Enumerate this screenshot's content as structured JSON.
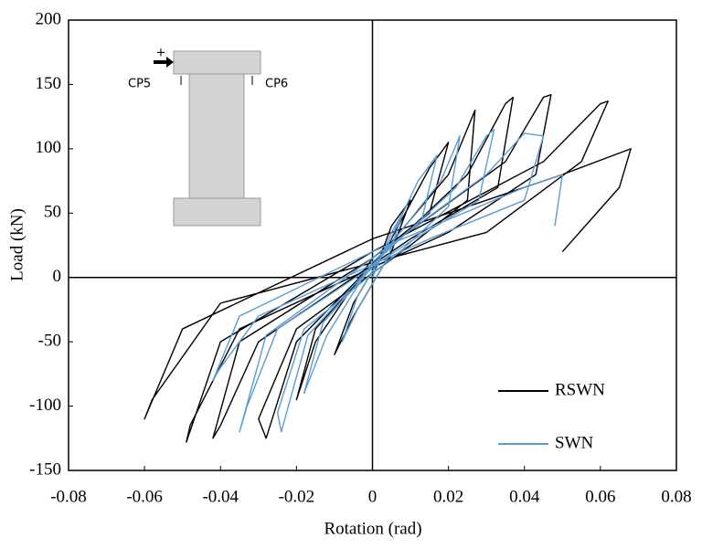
{
  "chart_data": {
    "type": "line",
    "x_label": "Rotation (rad)",
    "y_label": "Load (kN)",
    "xlim": [
      -0.08,
      0.08
    ],
    "xticks": [
      -0.08,
      -0.06,
      -0.04,
      -0.02,
      0,
      0.02,
      0.04,
      0.06,
      0.08
    ],
    "ylim": [
      -150,
      200
    ],
    "yticks": [
      -150,
      -100,
      -50,
      0,
      50,
      100,
      150,
      200
    ],
    "legend": "lower right",
    "annotations": [
      "+",
      "CP5",
      "CP6"
    ],
    "series": [
      {
        "name": "RSWN",
        "color": "#000000",
        "x": [
          0,
          0.005,
          0.01,
          0.005,
          -0.005,
          -0.01,
          -0.005,
          0.005,
          0.015,
          0.02,
          0.015,
          0,
          -0.015,
          -0.02,
          -0.015,
          0,
          0.02,
          0.027,
          0.025,
          0.01,
          -0.02,
          -0.03,
          -0.028,
          -0.02,
          0,
          0.025,
          0.035,
          0.037,
          0.033,
          0.01,
          -0.03,
          -0.04,
          -0.042,
          -0.035,
          0,
          0.035,
          0.045,
          0.047,
          0.043,
          0.02,
          -0.035,
          -0.048,
          -0.049,
          -0.04,
          0,
          0.045,
          0.06,
          0.062,
          0.055,
          0.03,
          -0.04,
          -0.058,
          -0.06,
          -0.05,
          0,
          0.05,
          0.068,
          0.065,
          0.05
        ],
        "values": [
          0,
          40,
          60,
          20,
          -30,
          -60,
          -20,
          30,
          85,
          105,
          50,
          15,
          -50,
          -95,
          -40,
          10,
          80,
          130,
          60,
          25,
          -40,
          -110,
          -125,
          -50,
          10,
          80,
          135,
          140,
          70,
          30,
          -50,
          -115,
          -125,
          -50,
          15,
          90,
          140,
          142,
          80,
          35,
          -40,
          -115,
          -128,
          -50,
          20,
          90,
          135,
          137,
          90,
          35,
          -20,
          -95,
          -110,
          -40,
          30,
          80,
          100,
          70,
          20
        ]
      },
      {
        "name": "SWN",
        "color": "#5b9bd5",
        "x": [
          0,
          0.005,
          0.008,
          0.004,
          -0.004,
          -0.008,
          -0.004,
          0.004,
          0.012,
          0.017,
          0.013,
          0,
          -0.012,
          -0.018,
          -0.013,
          0,
          0.018,
          0.023,
          0.02,
          0.008,
          -0.018,
          -0.025,
          -0.024,
          -0.017,
          0,
          0.022,
          0.03,
          0.032,
          0.028,
          0.01,
          -0.025,
          -0.033,
          -0.035,
          -0.028,
          0,
          0.03,
          0.04,
          0.045,
          0.04,
          0.015,
          -0.03,
          -0.04,
          -0.042,
          -0.035,
          0,
          0.04,
          0.05,
          0.048
        ],
        "values": [
          0,
          35,
          50,
          15,
          -25,
          -50,
          -15,
          25,
          75,
          95,
          45,
          12,
          -45,
          -90,
          -35,
          8,
          75,
          110,
          55,
          22,
          -40,
          -105,
          -120,
          -45,
          10,
          70,
          110,
          115,
          60,
          28,
          -40,
          -100,
          -120,
          -45,
          15,
          80,
          112,
          110,
          60,
          30,
          -30,
          -70,
          -80,
          -30,
          20,
          70,
          80,
          40
        ]
      }
    ]
  }
}
